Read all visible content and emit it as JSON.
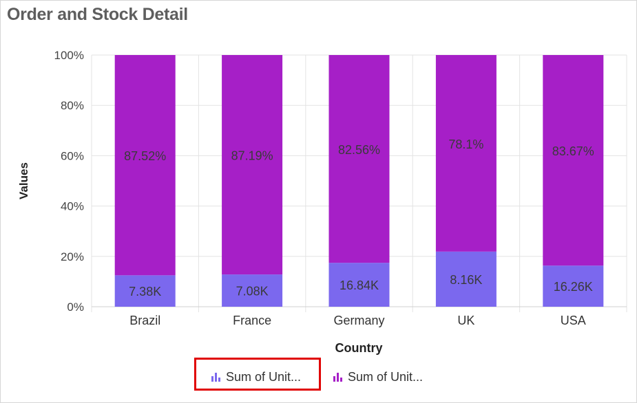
{
  "title": "Order and Stock Detail",
  "chart_data": {
    "type": "bar",
    "stacked": "100%",
    "categories": [
      "Brazil",
      "France",
      "Germany",
      "UK",
      "USA"
    ],
    "series": [
      {
        "name": "Sum of Unit...",
        "color": "#7b68ee",
        "percent": [
          12.48,
          12.81,
          17.44,
          21.9,
          16.33
        ],
        "labels": [
          "7.38K",
          "7.08K",
          "16.84K",
          "8.16K",
          "16.26K"
        ]
      },
      {
        "name": "Sum of Unit...",
        "color": "#a61fc7",
        "percent": [
          87.52,
          87.19,
          82.56,
          78.1,
          83.67
        ],
        "labels": [
          "87.52%",
          "87.19%",
          "82.56%",
          "78.1%",
          "83.67%"
        ]
      }
    ],
    "xlabel": "Country",
    "ylabel": "Values",
    "ylim": [
      0,
      100
    ],
    "yticks": [
      "0%",
      "20%",
      "40%",
      "60%",
      "80%",
      "100%"
    ],
    "grid": true,
    "legend_position": "bottom"
  }
}
